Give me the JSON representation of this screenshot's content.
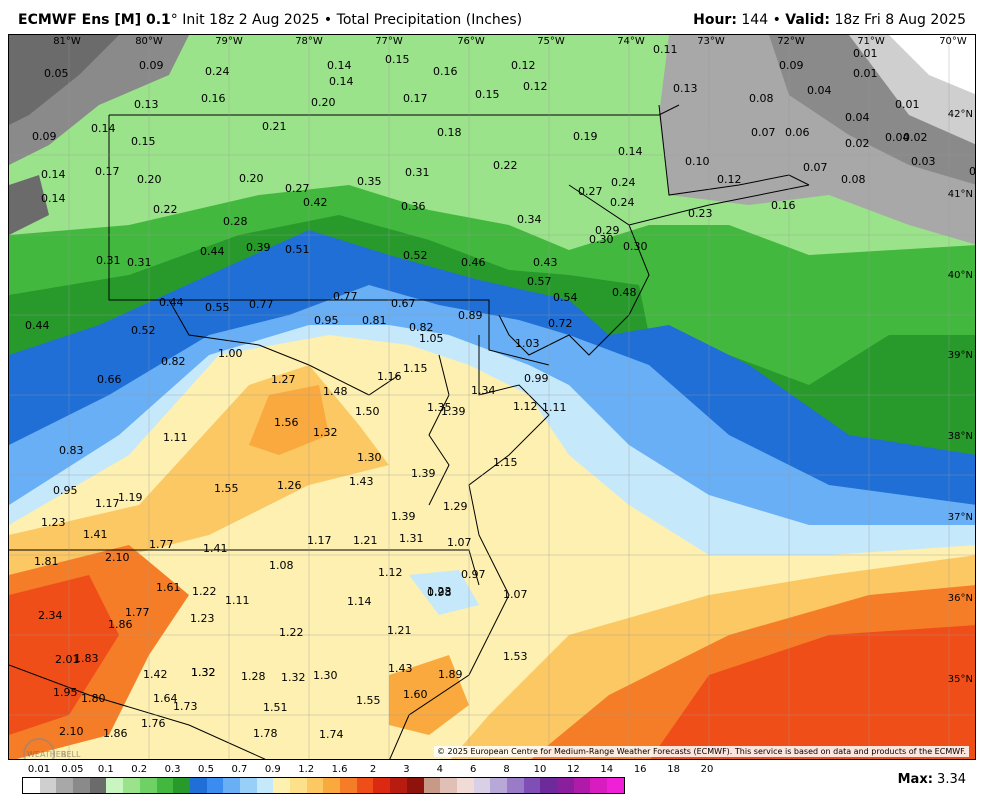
{
  "header": {
    "model": "ECMWF Ens [M] 0.1",
    "degree": "°",
    "init": "Init 18z 2 Aug 2025",
    "bullet": "•",
    "product": "Total Precipitation (Inches)",
    "hour_label": "Hour:",
    "hour_value": "144",
    "valid_label": "Valid:",
    "valid_value": "18z Fri 8 Aug 2025"
  },
  "longitude_labels": [
    "81°W",
    "80°W",
    "79°W",
    "78°W",
    "77°W",
    "76°W",
    "75°W",
    "74°W",
    "73°W",
    "72°W",
    "71°W",
    "70°W"
  ],
  "latitude_labels": [
    "42°N",
    "41°N",
    "40°N",
    "39°N",
    "38°N",
    "37°N",
    "36°N",
    "35°N"
  ],
  "point_values": [
    {
      "t": "0.05"
    },
    {
      "t": "0.09"
    },
    {
      "t": "0.24"
    },
    {
      "t": "0.14"
    },
    {
      "t": "0.15"
    },
    {
      "t": "0.16"
    },
    {
      "t": "0.12"
    },
    {
      "t": "0.11"
    },
    {
      "t": "0.09"
    },
    {
      "t": "0.01"
    },
    {
      "t": "0.01"
    },
    {
      "t": "0.13"
    },
    {
      "t": "0.16"
    },
    {
      "t": "0.20"
    },
    {
      "t": "0.14"
    },
    {
      "t": "0.17"
    },
    {
      "t": "0.15"
    },
    {
      "t": "0.12"
    },
    {
      "t": "0.13"
    },
    {
      "t": "0.04"
    },
    {
      "t": "0.08"
    },
    {
      "t": "0.01"
    },
    {
      "t": "0.09"
    },
    {
      "t": "0.14"
    },
    {
      "t": "0.15"
    },
    {
      "t": "0.21"
    },
    {
      "t": "0.18"
    },
    {
      "t": "0.19"
    },
    {
      "t": "0.14"
    },
    {
      "t": "0.07"
    },
    {
      "t": "0.06"
    },
    {
      "t": "0.04"
    },
    {
      "t": "0.02"
    },
    {
      "t": "0.04"
    },
    {
      "t": "0.02"
    },
    {
      "t": "0.14"
    },
    {
      "t": "0.17"
    },
    {
      "t": "0.20"
    },
    {
      "t": "0.20"
    },
    {
      "t": "0.27"
    },
    {
      "t": "0.35"
    },
    {
      "t": "0.31"
    },
    {
      "t": "0.22"
    },
    {
      "t": "0.10"
    },
    {
      "t": "0.12"
    },
    {
      "t": "0.07"
    },
    {
      "t": "0.08"
    },
    {
      "t": "0.03"
    },
    {
      "t": "0.02"
    },
    {
      "t": "0.14"
    },
    {
      "t": "0.22"
    },
    {
      "t": "0.42"
    },
    {
      "t": "0.36"
    },
    {
      "t": "0.27"
    },
    {
      "t": "0.24"
    },
    {
      "t": "0.24"
    },
    {
      "t": "0.16"
    },
    {
      "t": "0.23"
    },
    {
      "t": "0.28"
    },
    {
      "t": "0.34"
    },
    {
      "t": "0.29"
    },
    {
      "t": "0.30"
    },
    {
      "t": "0.30"
    },
    {
      "t": "0.31"
    },
    {
      "t": "0.31"
    },
    {
      "t": "0.44"
    },
    {
      "t": "0.39"
    },
    {
      "t": "0.51"
    },
    {
      "t": "0.52"
    },
    {
      "t": "0.46"
    },
    {
      "t": "0.43"
    },
    {
      "t": "0.57"
    },
    {
      "t": "0.54"
    },
    {
      "t": "0.48"
    },
    {
      "t": "0.44"
    },
    {
      "t": "0.44"
    },
    {
      "t": "0.55"
    },
    {
      "t": "0.77"
    },
    {
      "t": "0.77"
    },
    {
      "t": "0.67"
    },
    {
      "t": "0.52"
    },
    {
      "t": "0.95"
    },
    {
      "t": "0.81"
    },
    {
      "t": "0.82"
    },
    {
      "t": "0.89"
    },
    {
      "t": "0.72"
    },
    {
      "t": "1.05"
    },
    {
      "t": "1.03"
    },
    {
      "t": "1.00"
    },
    {
      "t": "0.82"
    },
    {
      "t": "0.66"
    },
    {
      "t": "1.15"
    },
    {
      "t": "1.27"
    },
    {
      "t": "1.48"
    },
    {
      "t": "1.16"
    },
    {
      "t": "0.99"
    },
    {
      "t": "1.34"
    },
    {
      "t": "1.50"
    },
    {
      "t": "1.35"
    },
    {
      "t": "1.39"
    },
    {
      "t": "1.12"
    },
    {
      "t": "1.11"
    },
    {
      "t": "1.56"
    },
    {
      "t": "1.32"
    },
    {
      "t": "1.11"
    },
    {
      "t": "0.83"
    },
    {
      "t": "1.30"
    },
    {
      "t": "1.15"
    },
    {
      "t": "1.39"
    },
    {
      "t": "1.43"
    },
    {
      "t": "1.26"
    },
    {
      "t": "1.55"
    },
    {
      "t": "0.95"
    },
    {
      "t": "1.17"
    },
    {
      "t": "1.19"
    },
    {
      "t": "1.29"
    },
    {
      "t": "1.23"
    },
    {
      "t": "1.39"
    },
    {
      "t": "1.41"
    },
    {
      "t": "1.77"
    },
    {
      "t": "1.41"
    },
    {
      "t": "1.17"
    },
    {
      "t": "1.21"
    },
    {
      "t": "1.31"
    },
    {
      "t": "1.07"
    },
    {
      "t": "1.81"
    },
    {
      "t": "2.10"
    },
    {
      "t": "1.08"
    },
    {
      "t": "1.12"
    },
    {
      "t": "0.97"
    },
    {
      "t": "1.61"
    },
    {
      "t": "1.22"
    },
    {
      "t": "1.23"
    },
    {
      "t": "1.11"
    },
    {
      "t": "1.14"
    },
    {
      "t": "0.98"
    },
    {
      "t": "1.07"
    },
    {
      "t": "2.34"
    },
    {
      "t": "1.77"
    },
    {
      "t": "1.86"
    },
    {
      "t": "1.23"
    },
    {
      "t": "1.22"
    },
    {
      "t": "1.21"
    },
    {
      "t": "2.01"
    },
    {
      "t": "1.83"
    },
    {
      "t": "1.32"
    },
    {
      "t": "1.53"
    },
    {
      "t": "1.42"
    },
    {
      "t": "1.32"
    },
    {
      "t": "1.28"
    },
    {
      "t": "1.32"
    },
    {
      "t": "1.30"
    },
    {
      "t": "1.43"
    },
    {
      "t": "1.89"
    },
    {
      "t": "1.95"
    },
    {
      "t": "1.80"
    },
    {
      "t": "1.64"
    },
    {
      "t": "1.73"
    },
    {
      "t": "1.51"
    },
    {
      "t": "1.55"
    },
    {
      "t": "1.60"
    },
    {
      "t": "2.10"
    },
    {
      "t": "1.86"
    },
    {
      "t": "1.76"
    },
    {
      "t": "1.78"
    },
    {
      "t": "1.74"
    }
  ],
  "copyright": "© 2025 European Centre for Medium-Range Weather Forecasts (ECMWF). This service is based on data and products of the ECMWF.",
  "colorbar": {
    "labels": [
      "0.01",
      "0.05",
      "0.1",
      "0.2",
      "0.3",
      "0.5",
      "0.7",
      "0.9",
      "1.2",
      "1.6",
      "2",
      "3",
      "4",
      "6",
      "8",
      "10",
      "12",
      "14",
      "16",
      "18",
      "20"
    ],
    "colors": [
      "#ffffff",
      "#cfcfcf",
      "#a8a8a8",
      "#8a8a8a",
      "#6b6b6b",
      "#c8f5c0",
      "#9be38a",
      "#6fd165",
      "#43b83f",
      "#279a2b",
      "#1f6fd6",
      "#3b8cf0",
      "#68aff5",
      "#98cff8",
      "#c6e8fb",
      "#fdf0b0",
      "#fde08a",
      "#fcc863",
      "#f9a93e",
      "#f57d28",
      "#f04e18",
      "#dc2a12",
      "#b81b10",
      "#8f130d",
      "#c79a88",
      "#e0bfb4",
      "#f0dbd6",
      "#d9d0e8",
      "#b8a8d8",
      "#9a7bc8",
      "#7f4fb6",
      "#6d2a9a",
      "#8a1e9c",
      "#b01aa8",
      "#d81cc0",
      "#f020d8"
    ]
  },
  "max": {
    "label": "Max:",
    "value": "3.34"
  },
  "logo": {
    "line1": "WEATHER",
    "line2": "BELL"
  }
}
